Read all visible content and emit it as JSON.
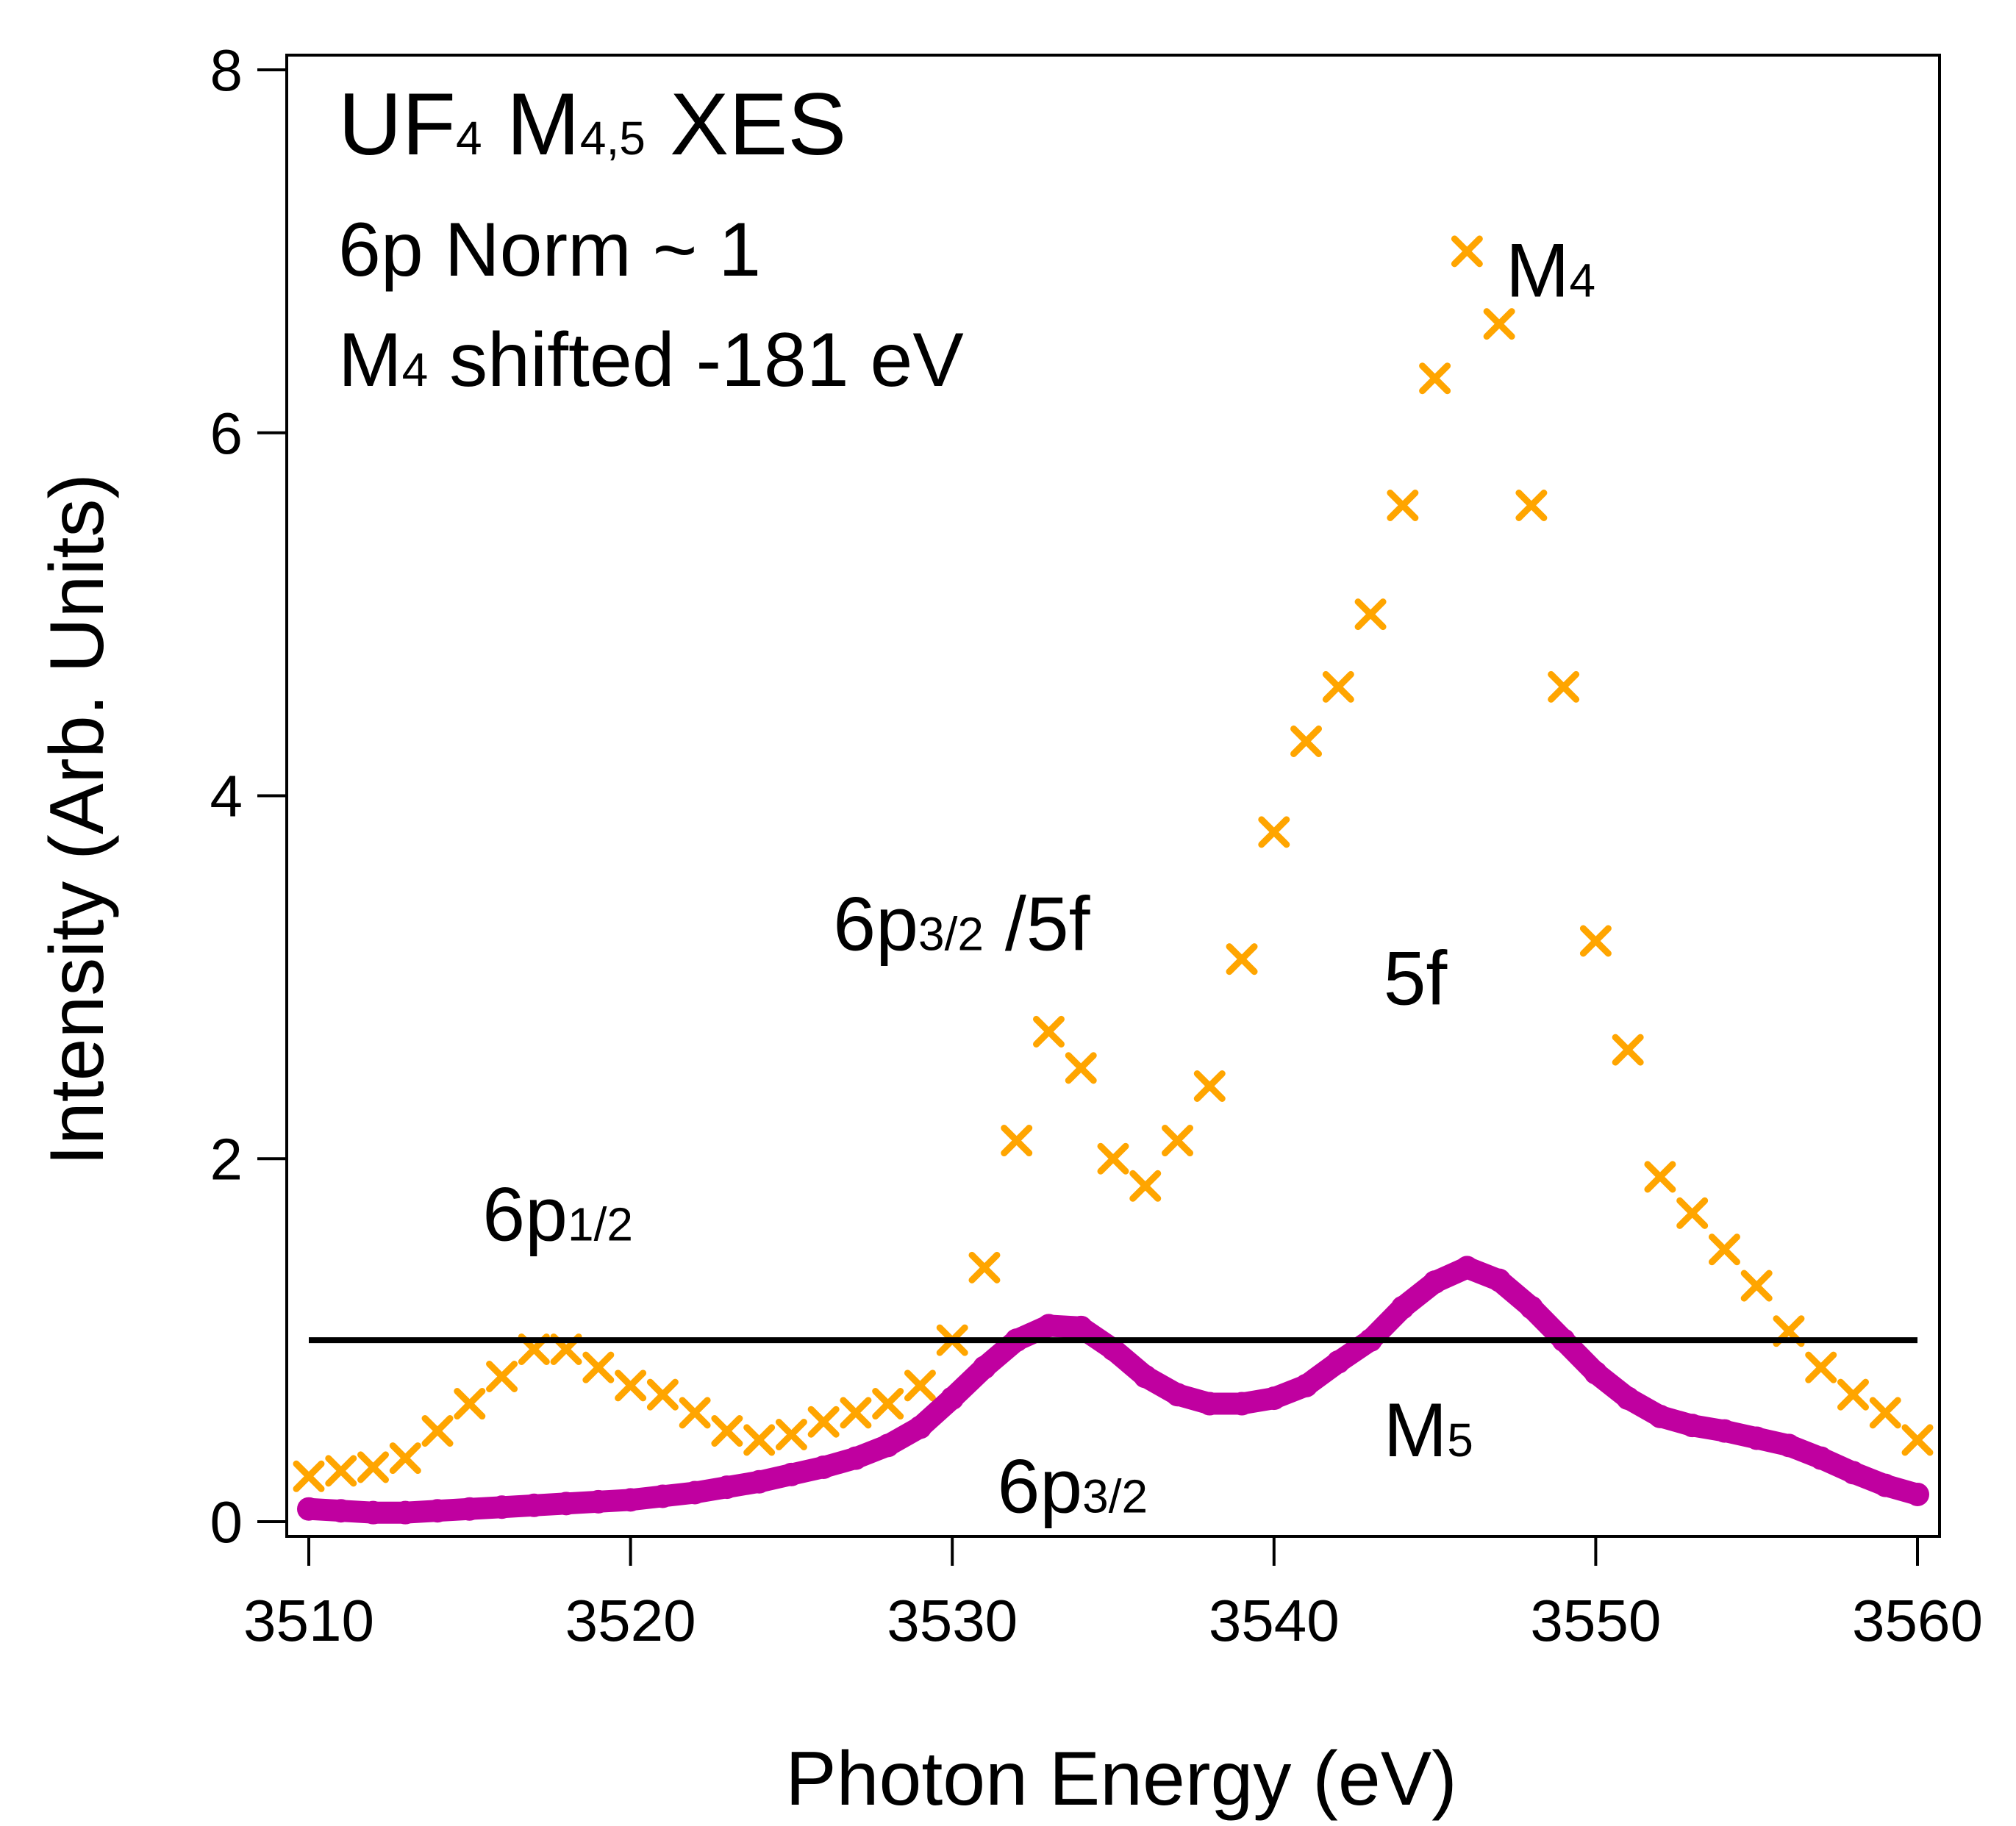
{
  "chart_data": {
    "type": "scatter",
    "xlabel": "Photon Energy (eV)",
    "ylabel": "Intensity (Arb. Units)",
    "xlim": [
      3510,
      3560
    ],
    "ylim": [
      0,
      8
    ],
    "xticks": [
      3510,
      3520,
      3530,
      3540,
      3550,
      3560
    ],
    "yticks": [
      0,
      2,
      4,
      6,
      8
    ],
    "grid": false,
    "reference_line": {
      "y": 1,
      "color": "#000000"
    },
    "annotation_lines": [
      {
        "parts": [
          {
            "text": "UF"
          },
          {
            "text": "4",
            "sub": true
          },
          {
            "text": " M"
          },
          {
            "text": "4,5",
            "sub": true
          },
          {
            "text": " XES"
          }
        ]
      },
      {
        "parts": [
          {
            "text": "6p Norm ~ 1"
          }
        ]
      },
      {
        "parts": [
          {
            "text": "M"
          },
          {
            "text": "4",
            "sub": true
          },
          {
            "text": " shifted -181 eV"
          }
        ]
      }
    ],
    "peak_labels": [
      {
        "main": "M",
        "sub": "4",
        "after": "",
        "x": 3547.2,
        "y": 6.75,
        "size": "big"
      },
      {
        "main": "6p",
        "sub": "3/2",
        "after": " /5f",
        "x": 3526.3,
        "y": 3.15,
        "size": "big"
      },
      {
        "main": "5f",
        "sub": "",
        "after": "",
        "x": 3543.4,
        "y": 2.85,
        "size": "big"
      },
      {
        "main": "6p",
        "sub": "1/2",
        "after": "",
        "x": 3515.4,
        "y": 1.55,
        "size": "big"
      },
      {
        "main": "M",
        "sub": "5",
        "after": "",
        "x": 3543.4,
        "y": 0.36,
        "size": "big"
      },
      {
        "main": "6p",
        "sub": "3/2",
        "after": "",
        "x": 3531.4,
        "y": 0.05,
        "size": "big"
      }
    ],
    "series": [
      {
        "name": "M4",
        "marker": "x",
        "color": "#FFA500",
        "x": [
          3510,
          3511,
          3512,
          3513,
          3514,
          3515,
          3516,
          3517,
          3518,
          3519,
          3520,
          3521,
          3522,
          3523,
          3524,
          3525,
          3526,
          3527,
          3528,
          3529,
          3530,
          3531,
          3532,
          3533,
          3534,
          3535,
          3536,
          3537,
          3538,
          3539,
          3540,
          3541,
          3542,
          3543,
          3544,
          3545,
          3546,
          3547,
          3548,
          3549,
          3550,
          3551,
          3552,
          3553,
          3554,
          3555,
          3556,
          3557,
          3558,
          3559,
          3560
        ],
        "y": [
          0.25,
          0.28,
          0.3,
          0.35,
          0.5,
          0.65,
          0.8,
          0.95,
          0.95,
          0.85,
          0.75,
          0.7,
          0.6,
          0.5,
          0.45,
          0.48,
          0.55,
          0.6,
          0.65,
          0.75,
          1.0,
          1.4,
          2.1,
          2.7,
          2.5,
          2.0,
          1.85,
          2.1,
          2.4,
          3.1,
          3.8,
          4.3,
          4.6,
          5.0,
          5.6,
          6.3,
          7.0,
          6.6,
          5.6,
          4.6,
          3.2,
          2.6,
          1.9,
          1.7,
          1.5,
          1.3,
          1.05,
          0.85,
          0.7,
          0.6,
          0.45
        ]
      },
      {
        "name": "M5",
        "marker": "thick-line",
        "color": "#C000A0",
        "x": [
          3510,
          3511,
          3512,
          3513,
          3514,
          3515,
          3516,
          3517,
          3518,
          3519,
          3520,
          3521,
          3522,
          3523,
          3524,
          3525,
          3526,
          3527,
          3528,
          3529,
          3530,
          3531,
          3532,
          3533,
          3534,
          3535,
          3536,
          3537,
          3538,
          3539,
          3540,
          3541,
          3542,
          3543,
          3544,
          3545,
          3546,
          3547,
          3548,
          3549,
          3550,
          3551,
          3552,
          3553,
          3554,
          3555,
          3556,
          3557,
          3558,
          3559,
          3560
        ],
        "y": [
          0.07,
          0.06,
          0.05,
          0.05,
          0.06,
          0.07,
          0.08,
          0.09,
          0.1,
          0.11,
          0.12,
          0.14,
          0.16,
          0.19,
          0.22,
          0.26,
          0.3,
          0.35,
          0.42,
          0.52,
          0.68,
          0.85,
          1.0,
          1.08,
          1.07,
          0.95,
          0.8,
          0.7,
          0.65,
          0.65,
          0.68,
          0.75,
          0.88,
          1.0,
          1.18,
          1.32,
          1.4,
          1.33,
          1.18,
          1.0,
          0.82,
          0.68,
          0.58,
          0.53,
          0.5,
          0.46,
          0.42,
          0.35,
          0.27,
          0.2,
          0.15
        ]
      }
    ]
  }
}
